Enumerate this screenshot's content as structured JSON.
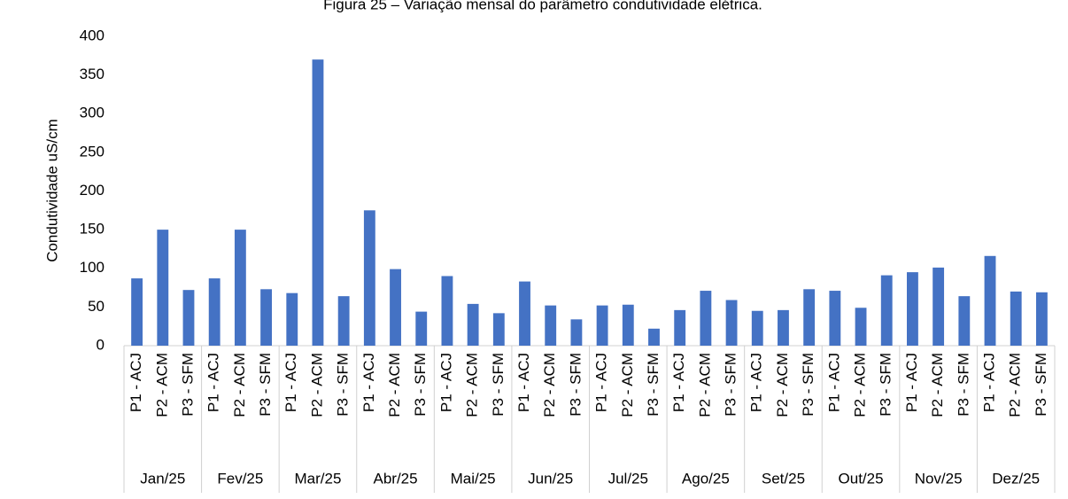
{
  "chart_data": {
    "type": "bar",
    "title": "Figura 25 – Variação mensal do parâmetro condutividade elétrica.",
    "y_label": "Condutividade uS/cm",
    "groups": [
      "Jan/25",
      "Fev/25",
      "Mar/25",
      "Abr/25",
      "Mai/25",
      "Jun/25",
      "Jul/25",
      "Ago/25",
      "Set/25",
      "Out/25",
      "Nov/25",
      "Dez/25"
    ],
    "categories": [
      "P1 - ACJ",
      "P2 - ACM",
      "P3 - SFM",
      "P1 - ACJ",
      "P2 - ACM",
      "P3 - SFM",
      "P1 - ACJ",
      "P2 - ACM",
      "P3 - SFM",
      "P1 - ACJ",
      "P2 - ACM",
      "P3 - SFM",
      "P1 - ACJ",
      "P2 - ACM",
      "P3 - SFM",
      "P1 - ACJ",
      "P2 - ACM",
      "P3 - SFM",
      "P1 - ACJ",
      "P2 - ACM",
      "P3 - SFM",
      "P1 - ACJ",
      "P2 - ACM",
      "P3 - SFM",
      "P1 - ACJ",
      "P2 - ACM",
      "P3 - SFM",
      "P1 - ACJ",
      "P2 - ACM",
      "P3 - SFM",
      "P1 - ACJ",
      "P2 - ACM",
      "P3 - SFM",
      "P1 - ACJ",
      "P2 - ACM",
      "P3 - SFM"
    ],
    "values": [
      87,
      150,
      72,
      87,
      150,
      73,
      68,
      370,
      64,
      175,
      99,
      44,
      90,
      54,
      42,
      83,
      52,
      34,
      52,
      53,
      22,
      46,
      71,
      59,
      45,
      46,
      73,
      71,
      49,
      91,
      95,
      101,
      64,
      116,
      70,
      69
    ],
    "color": "#4472c4",
    "ylim": [
      0,
      400
    ],
    "yticks": [
      0,
      50,
      100,
      150,
      200,
      250,
      300,
      350,
      400
    ],
    "grid": false
  }
}
